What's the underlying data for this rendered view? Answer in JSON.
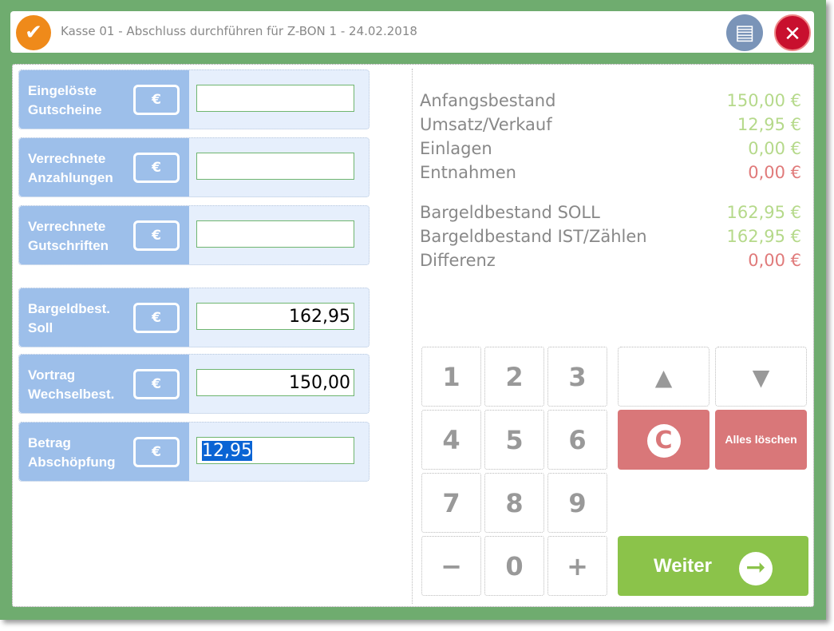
{
  "window": {
    "title": "Kasse 01 - Abschluss durchführen für Z-BON 1 - 24.02.2018",
    "icons": [
      "app-logo-icon",
      "printer-icon",
      "close-icon"
    ]
  },
  "fields": [
    {
      "label": "Eingelöste Gutscheine",
      "value": ""
    },
    {
      "label": "Verrechnete Anzahlungen",
      "value": ""
    },
    {
      "label": "Verrechnete Gutschriften",
      "value": ""
    },
    {
      "label": "Bargeldbest. Soll",
      "value": "162,95"
    },
    {
      "label": "Vortrag Wechselbest.",
      "value": "150,00"
    },
    {
      "label": "Betrag Abschöpfung",
      "value": "12,95"
    }
  ],
  "currency_icon": "€",
  "summary": [
    {
      "label": "Anfangsbestand",
      "value": "150,00 €",
      "color": "#b5d98a"
    },
    {
      "label": "Umsatz/Verkauf",
      "value": "12,95 €",
      "color": "#b5d98a"
    },
    {
      "label": "Einlagen",
      "value": "0,00 €",
      "color": "#b5d98a"
    },
    {
      "label": "Entnahmen",
      "value": "0,00 €",
      "color": "#e07a7a"
    },
    {
      "label": "Bargeldbestand SOLL",
      "value": "162,95 €",
      "color": "#b5d98a"
    },
    {
      "label": "Bargeldbestand IST/Zählen",
      "value": "162,95 €",
      "color": "#b5d98a"
    },
    {
      "label": "Differenz",
      "value": "0,00 €",
      "color": "#e07a7a"
    }
  ],
  "keypad": [
    "1",
    "2",
    "3",
    "4",
    "5",
    "6",
    "7",
    "8",
    "9",
    "−",
    "0",
    "+"
  ],
  "buttons": {
    "clear": "C",
    "clear_all": "Alles löschen",
    "next": "Weiter"
  },
  "colors": {
    "frame": "#6fac6f",
    "label_bg": "#9dbfea",
    "red": "#d97779",
    "green": "#8bc34a"
  }
}
